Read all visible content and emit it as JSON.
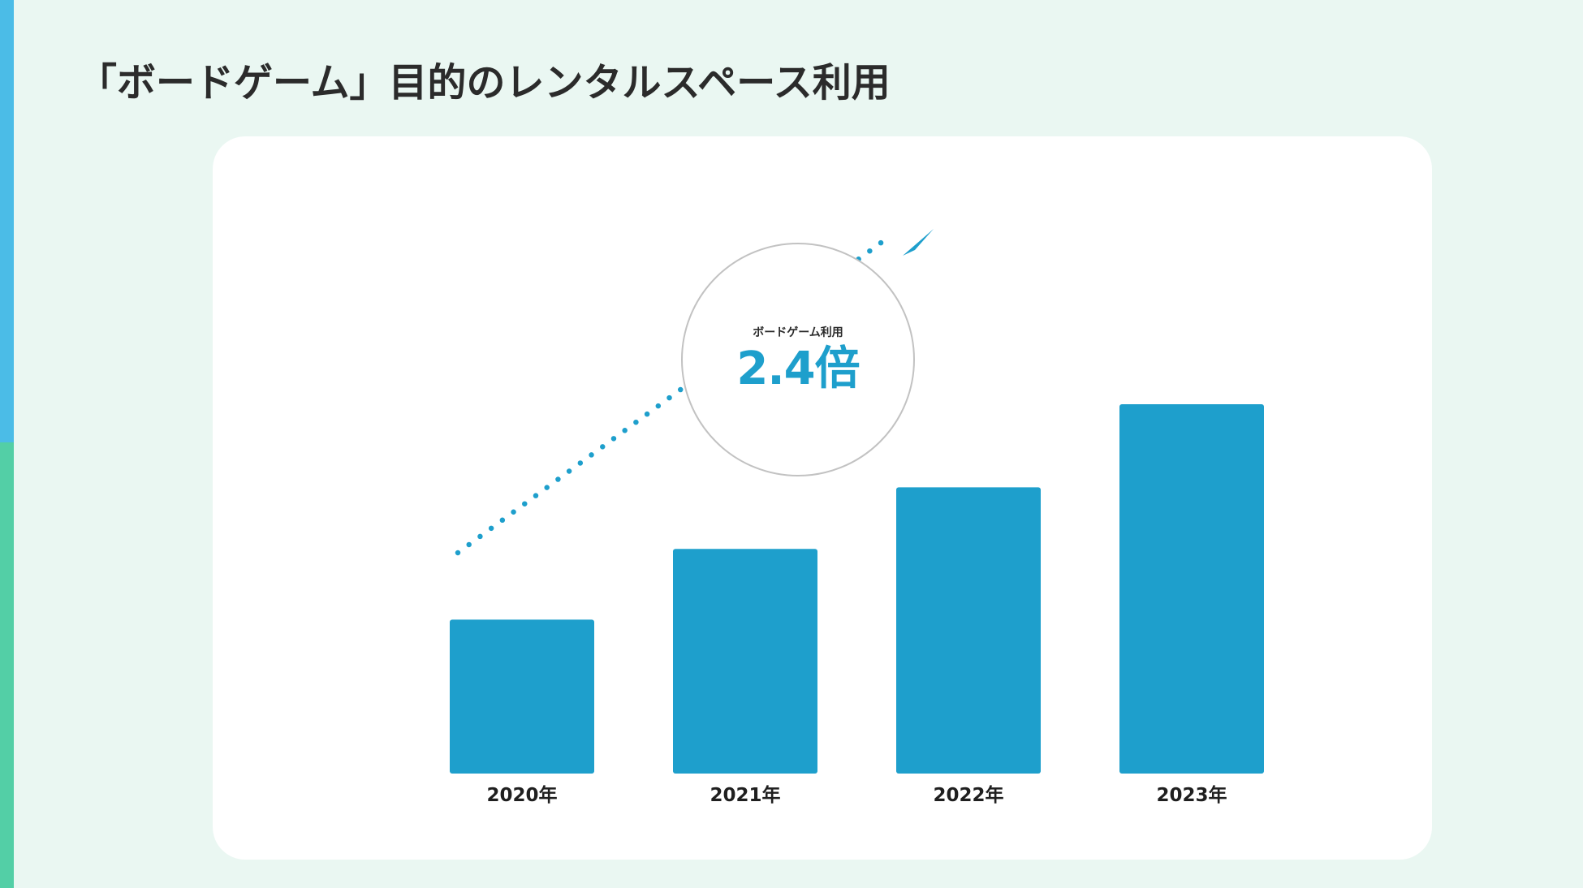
{
  "page": {
    "title": "「ボードゲーム」目的のレンタルスペース利用"
  },
  "colors": {
    "background": "#eaf7f2",
    "accent_top": "#4bbce7",
    "accent_bottom": "#53cfa6",
    "bar": "#1e9fcc",
    "trend_arrow": "#1e9fcc",
    "highlight_value": "#1e9fcc"
  },
  "highlight": {
    "label": "ボードゲーム利用",
    "value": "2.4倍"
  },
  "chart_data": {
    "type": "bar",
    "title": "「ボードゲーム」目的のレンタルスペース利用",
    "categories": [
      "2020年",
      "2021年",
      "2022年",
      "2023年"
    ],
    "values": [
      1.0,
      1.46,
      1.86,
      2.4
    ],
    "value_note": "2.4倍",
    "xlabel": "",
    "ylabel": "",
    "ylim": [
      0,
      2.4
    ],
    "grid": false,
    "legend": "none",
    "trend_arrow": true
  }
}
